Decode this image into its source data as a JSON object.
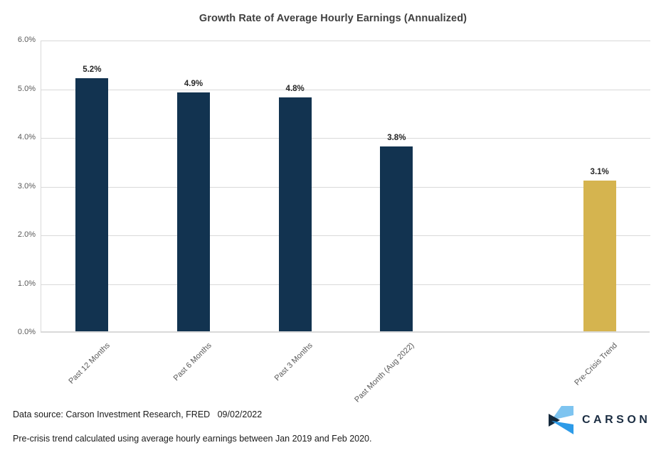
{
  "chart_data": {
    "type": "bar",
    "title": "Growth Rate of Average Hourly Earnings (Annualized)",
    "categories": [
      "Past 12 Months",
      "Past 6 Months",
      "Past 3 Months",
      "Past Month (Aug 2022)",
      "Pre-Crisis Trend"
    ],
    "values": [
      5.2,
      4.9,
      4.8,
      3.8,
      3.1
    ],
    "value_labels": [
      "5.2%",
      "4.9%",
      "4.8%",
      "3.8%",
      "3.1%"
    ],
    "bar_colors": [
      "#123350",
      "#123350",
      "#123350",
      "#123350",
      "#d5b44f"
    ],
    "slots": [
      0,
      1,
      2,
      3,
      5
    ],
    "slot_count": 6,
    "xlabel": "",
    "ylabel": "",
    "ylim": [
      0,
      6
    ],
    "ytick_labels": [
      "0.0%",
      "1.0%",
      "2.0%",
      "3.0%",
      "4.0%",
      "5.0%",
      "6.0%"
    ],
    "grid": true,
    "legend": "none"
  },
  "footer": {
    "source_line": "Data source: Carson Investment Research, FRED   09/02/2022",
    "note_line": "Pre-crisis trend calculated using average hourly earnings between Jan 2019 and Feb 2020.",
    "brand_text": "CARSON"
  },
  "colors": {
    "bar_navy": "#123350",
    "bar_gold": "#d5b44f",
    "gridline": "#d9d9d9",
    "axis_text": "#595959",
    "title_text": "#404040",
    "logo_navy_text": "#1b2d42",
    "logo_light_blue": "#7ec4f0",
    "logo_mid_blue": "#2d9be8",
    "logo_dark_navy": "#14293c"
  }
}
